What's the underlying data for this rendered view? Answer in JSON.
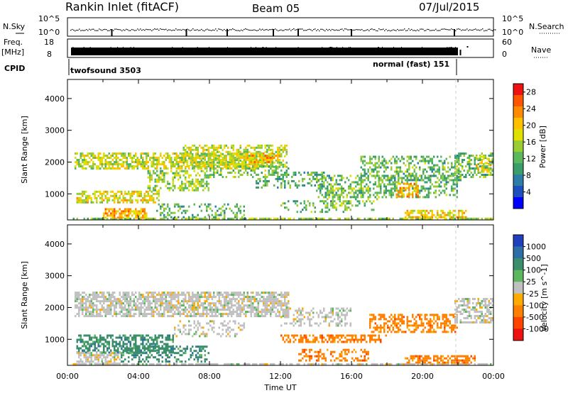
{
  "header": {
    "station": "Rankin Inlet (fitACF)",
    "beam": "Beam 05",
    "date": "07/Jul/2015"
  },
  "aux_panels": {
    "nsky": {
      "label": "N.Sky",
      "ticks": [
        "10^5",
        "10^0"
      ]
    },
    "nsearch": {
      "label": "N.Search",
      "ticks": [
        "10^5",
        "10^0"
      ]
    },
    "freq": {
      "label_line1": "Freq.",
      "label_line2": "[MHz]",
      "ticks": [
        "18",
        "8"
      ]
    },
    "nave": {
      "label": "Nave",
      "ticks": [
        "60",
        "0"
      ]
    },
    "cpid": {
      "label": "CPID",
      "modes": [
        {
          "name": "twofsound 3503",
          "start": "00:00",
          "end": "22:00"
        },
        {
          "name": "normal (fast) 151",
          "start": "22:00",
          "end": "24:00"
        }
      ]
    }
  },
  "chart_data": [
    {
      "type": "heatmap",
      "title": "Power",
      "xlabel": "Time UT",
      "ylabel": "Slant Range [km]",
      "x_ticks": [
        "00:00",
        "04:00",
        "08:00",
        "12:00",
        "16:00",
        "20:00",
        "00:00"
      ],
      "xlim_hours": [
        0,
        24
      ],
      "ylim_km": [
        180,
        4600
      ],
      "y_ticks": [
        1000,
        2000,
        3000,
        4000
      ],
      "colorbar": {
        "label": "Power [dB]",
        "ticks": [
          "4",
          "8",
          "12",
          "16",
          "20",
          "24",
          "28"
        ],
        "range": [
          0,
          30
        ],
        "colors": [
          "#0000ff",
          "#1f4fbf",
          "#2e7da6",
          "#3a9e6c",
          "#5cb85c",
          "#9acd32",
          "#e0e000",
          "#ffc000",
          "#ff8c00",
          "#ff5500",
          "#ee1111"
        ]
      },
      "bands": [
        {
          "t": [
            0.3,
            24
          ],
          "r": [
            200,
            250
          ],
          "v": 14,
          "d": 0.7
        },
        {
          "t": [
            0.4,
            11
          ],
          "r": [
            1800,
            2300
          ],
          "v": 17,
          "d": 0.65
        },
        {
          "t": [
            6.5,
            12.3
          ],
          "r": [
            1850,
            2550
          ],
          "v": 16,
          "d": 0.55
        },
        {
          "t": [
            0.5,
            5.2
          ],
          "r": [
            700,
            1100
          ],
          "v": 18,
          "d": 0.6
        },
        {
          "t": [
            2.0,
            4.5
          ],
          "r": [
            250,
            550
          ],
          "v": 22,
          "d": 0.7
        },
        {
          "t": [
            4.5,
            8.0
          ],
          "r": [
            1100,
            1750
          ],
          "v": 15,
          "d": 0.45
        },
        {
          "t": [
            5.0,
            10.0
          ],
          "r": [
            250,
            700
          ],
          "v": 11,
          "d": 0.3
        },
        {
          "t": [
            8.0,
            12.5
          ],
          "r": [
            1500,
            1900
          ],
          "v": 13,
          "d": 0.35
        },
        {
          "t": [
            10.5,
            14.5
          ],
          "r": [
            1200,
            1700
          ],
          "v": 11,
          "d": 0.3
        },
        {
          "t": [
            12.0,
            16.0
          ],
          "r": [
            400,
            800
          ],
          "v": 12,
          "d": 0.3
        },
        {
          "t": [
            14.0,
            22.0
          ],
          "r": [
            900,
            1600
          ],
          "v": 12,
          "d": 0.4
        },
        {
          "t": [
            16.5,
            22.2
          ],
          "r": [
            1400,
            2200
          ],
          "v": 12,
          "d": 0.45
        },
        {
          "t": [
            18.5,
            19.8
          ],
          "r": [
            900,
            1350
          ],
          "v": 22,
          "d": 0.6
        },
        {
          "t": [
            19.0,
            22.5
          ],
          "r": [
            250,
            500
          ],
          "v": 20,
          "d": 0.6
        },
        {
          "t": [
            21.8,
            24.0
          ],
          "r": [
            1500,
            2300
          ],
          "v": 12,
          "d": 0.45
        },
        {
          "t": [
            23.0,
            24.0
          ],
          "r": [
            1700,
            2200
          ],
          "v": 18,
          "d": 0.55
        },
        {
          "t": [
            10.0,
            12.0
          ],
          "r": [
            2000,
            2300
          ],
          "v": 22,
          "d": 0.55
        },
        {
          "t": [
            14.5,
            17.5
          ],
          "r": [
            500,
            1200
          ],
          "v": 14,
          "d": 0.25
        }
      ]
    },
    {
      "type": "heatmap",
      "title": "Velocity",
      "xlabel": "Time UT",
      "ylabel": "Slant Range [km]",
      "x_ticks": [
        "00:00",
        "04:00",
        "08:00",
        "12:00",
        "16:00",
        "20:00",
        "00:00"
      ],
      "xlim_hours": [
        0,
        24
      ],
      "ylim_km": [
        180,
        4600
      ],
      "y_ticks": [
        1000,
        2000,
        3000,
        4000
      ],
      "colorbar": {
        "label": "Velocity [m s^-1]",
        "ticks": [
          "1000",
          "500",
          "100",
          "25",
          "-25",
          "-100",
          "-500",
          "-1000"
        ],
        "colors": [
          "#1f3fbf",
          "#2e6ea6",
          "#3a8e6c",
          "#5cb85c",
          "#c0c0c0",
          "#ffaa00",
          "#ff8000",
          "#ff4400",
          "#ee1111"
        ]
      },
      "bands": [
        {
          "t": [
            0.3,
            24
          ],
          "r": [
            200,
            250
          ],
          "v": 4,
          "d": 0.7
        },
        {
          "t": [
            0.4,
            12.5
          ],
          "r": [
            1700,
            2500
          ],
          "v": 4,
          "d": 0.7
        },
        {
          "t": [
            0.5,
            6.0
          ],
          "r": [
            600,
            1150
          ],
          "v": 2,
          "d": 0.6
        },
        {
          "t": [
            0.5,
            3.0
          ],
          "r": [
            250,
            600
          ],
          "v": 4,
          "d": 0.6
        },
        {
          "t": [
            3.0,
            8.0
          ],
          "r": [
            300,
            800
          ],
          "v": 2,
          "d": 0.4
        },
        {
          "t": [
            12.0,
            18.0
          ],
          "r": [
            900,
            1150
          ],
          "v": 6,
          "d": 0.55
        },
        {
          "t": [
            13.0,
            17.0
          ],
          "r": [
            300,
            700
          ],
          "v": 6,
          "d": 0.4
        },
        {
          "t": [
            17.0,
            22.0
          ],
          "r": [
            1200,
            1800
          ],
          "v": 6,
          "d": 0.5
        },
        {
          "t": [
            19.0,
            23.0
          ],
          "r": [
            250,
            500
          ],
          "v": 6,
          "d": 0.65
        },
        {
          "t": [
            21.8,
            24.0
          ],
          "r": [
            1500,
            2300
          ],
          "v": 4,
          "d": 0.55
        },
        {
          "t": [
            12.0,
            16.0
          ],
          "r": [
            1400,
            2000
          ],
          "v": 4,
          "d": 0.35
        },
        {
          "t": [
            6.0,
            10.0
          ],
          "r": [
            1100,
            1600
          ],
          "v": 4,
          "d": 0.3
        }
      ]
    }
  ]
}
